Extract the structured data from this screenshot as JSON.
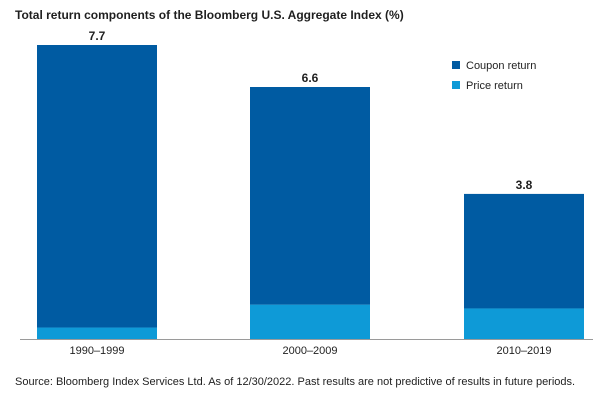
{
  "chart_data": {
    "type": "bar",
    "stacked": true,
    "title": "Total return components of the Bloomberg U.S. Aggregate Index (%)",
    "categories": [
      "1990–1999",
      "2000–2009",
      "2010–2019"
    ],
    "series": [
      {
        "name": "Price return",
        "values": [
          0.3,
          0.9,
          0.8
        ],
        "color": "#0e9ad7"
      },
      {
        "name": "Coupon return",
        "values": [
          7.4,
          5.7,
          3.0
        ],
        "color": "#005ba2"
      }
    ],
    "totals": [
      7.7,
      6.6,
      3.8
    ],
    "total_labels": [
      "7.7",
      "6.6",
      "3.8"
    ],
    "ylim": [
      0,
      7.7
    ],
    "xlabel": "",
    "ylabel": "",
    "grid": false,
    "legend_position": "top-right",
    "legend_order": [
      "Coupon return",
      "Price return"
    ],
    "source": "Source: Bloomberg Index Services Ltd. As of 12/30/2022. Past results are not predictive of results in future periods."
  }
}
